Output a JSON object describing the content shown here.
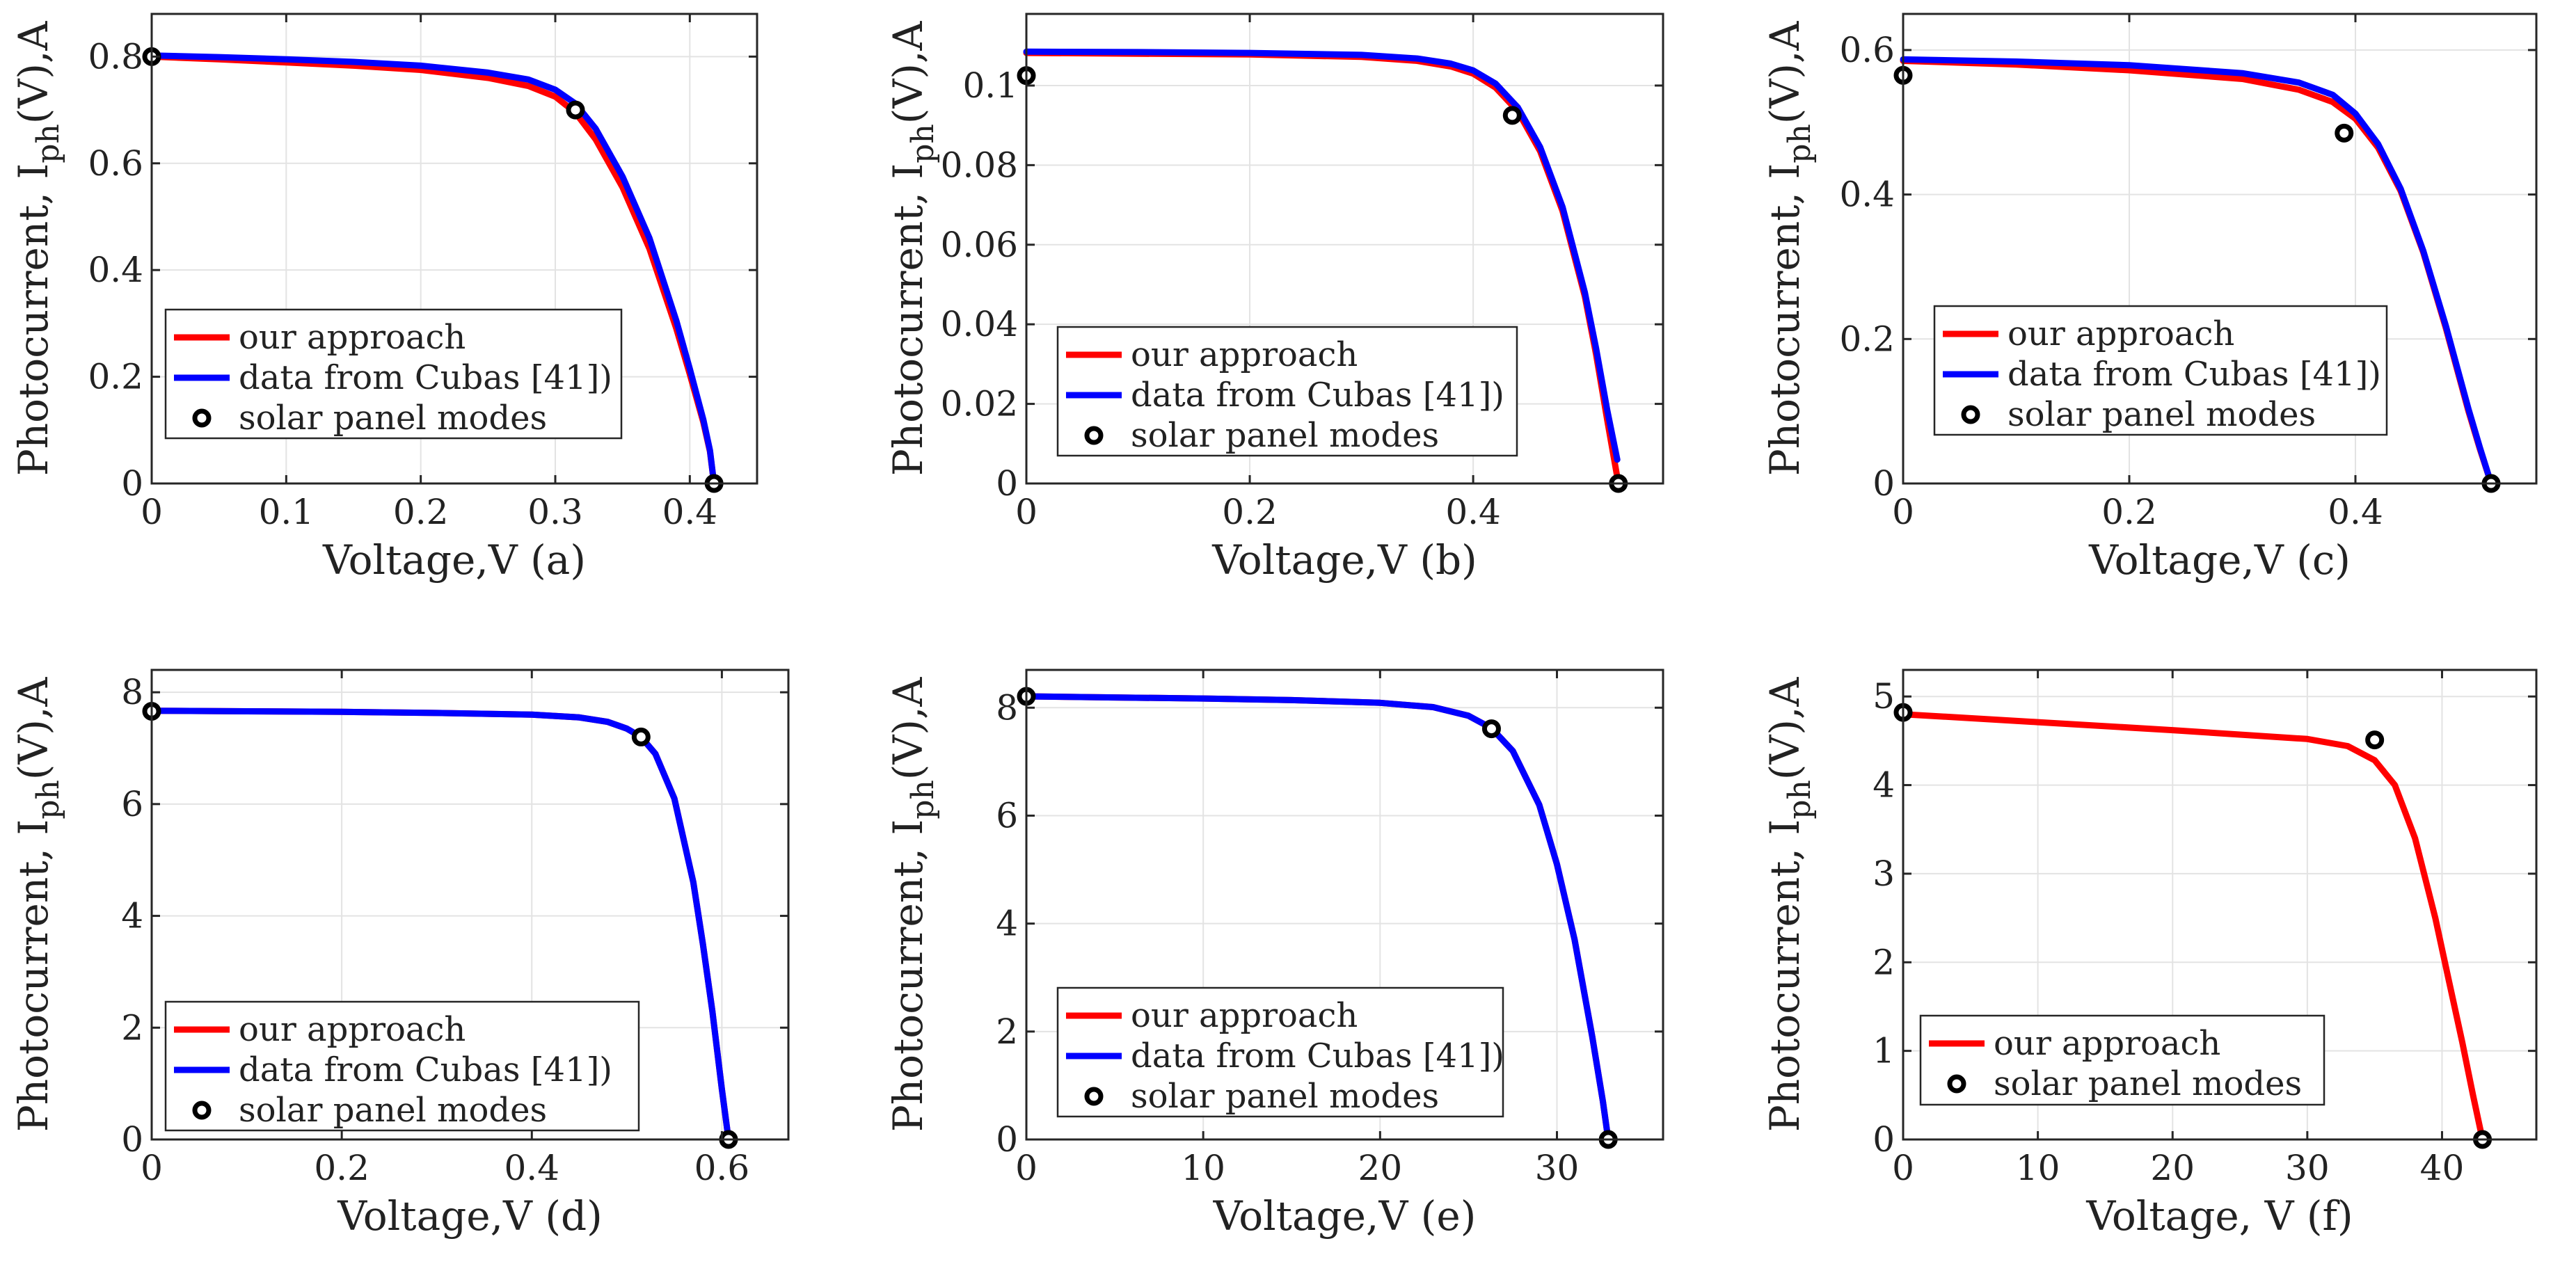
{
  "figure": {
    "colors": {
      "approach": "#ff0000",
      "cubas": "#0000ff",
      "modes": "#000000",
      "grid": "#e3e3e3",
      "axis": "#262626"
    }
  },
  "chart_data": [
    {
      "type": "line",
      "panel": "a",
      "title": "",
      "xlabel": "Voltage,V (a)",
      "ylabel": "Photocurrent, I_ph(V),A",
      "ylabel_parts": {
        "main": "Photocurrent, I",
        "sub": "ph",
        "tail": "(V),A"
      },
      "xlim": [
        0,
        0.45
      ],
      "ylim": [
        0,
        0.88
      ],
      "xticks": [
        0,
        0.1,
        0.2,
        0.3,
        0.4
      ],
      "xtick_labels": [
        "0",
        "0.1",
        "0.2",
        "0.3",
        "0.4"
      ],
      "yticks": [
        0,
        0.2,
        0.4,
        0.6,
        0.8
      ],
      "ytick_labels": [
        "0",
        "0.2",
        "0.4",
        "0.6",
        "0.8"
      ],
      "grid": true,
      "legend": [
        "our approach",
        "data from Cubas [41])",
        "solar panel modes"
      ],
      "legend_placement": "bottom-left",
      "series": [
        {
          "name": "our approach",
          "color": "#ff0000",
          "x": [
            0,
            0.05,
            0.1,
            0.15,
            0.2,
            0.25,
            0.28,
            0.3,
            0.315,
            0.33,
            0.35,
            0.37,
            0.39,
            0.4,
            0.41,
            0.415,
            0.418
          ],
          "y": [
            0.8,
            0.795,
            0.789,
            0.783,
            0.775,
            0.76,
            0.745,
            0.725,
            0.695,
            0.645,
            0.555,
            0.44,
            0.29,
            0.205,
            0.115,
            0.06,
            0.0
          ]
        },
        {
          "name": "data from Cubas [41])",
          "color": "#0000ff",
          "x": [
            0,
            0.05,
            0.1,
            0.15,
            0.2,
            0.25,
            0.28,
            0.3,
            0.315,
            0.33,
            0.35,
            0.37,
            0.39,
            0.4,
            0.41,
            0.415,
            0.418
          ],
          "y": [
            0.802,
            0.799,
            0.795,
            0.79,
            0.783,
            0.77,
            0.757,
            0.738,
            0.712,
            0.665,
            0.575,
            0.46,
            0.305,
            0.215,
            0.12,
            0.062,
            0.0
          ]
        }
      ],
      "points": {
        "name": "solar panel modes",
        "x": [
          0,
          0.315,
          0.418
        ],
        "y": [
          0.8,
          0.7,
          0.0
        ]
      }
    },
    {
      "type": "line",
      "panel": "b",
      "title": "",
      "xlabel": "Voltage,V (b)",
      "ylabel": "Photocurrent, I_ph(V),A",
      "ylabel_parts": {
        "main": "Photocurrent, I",
        "sub": "ph",
        "tail": "(V),A"
      },
      "xlim": [
        0,
        0.57
      ],
      "ylim": [
        0,
        0.118
      ],
      "xticks": [
        0,
        0.2,
        0.4
      ],
      "xtick_labels": [
        "0",
        "0.2",
        "0.4"
      ],
      "yticks": [
        0,
        0.02,
        0.04,
        0.06,
        0.08,
        0.1
      ],
      "ytick_labels": [
        "0",
        "0.02",
        "0.04",
        "0.06",
        "0.08",
        "0.1"
      ],
      "grid": true,
      "legend": [
        "our approach",
        "data from Cubas [41])",
        "solar panel modes"
      ],
      "legend_placement": "bottom-center",
      "series": [
        {
          "name": "our approach",
          "color": "#ff0000",
          "x": [
            0,
            0.1,
            0.2,
            0.3,
            0.35,
            0.38,
            0.4,
            0.42,
            0.44,
            0.46,
            0.48,
            0.5,
            0.51,
            0.52,
            0.53
          ],
          "y": [
            0.1082,
            0.108,
            0.1078,
            0.1072,
            0.1062,
            0.1048,
            0.103,
            0.0995,
            0.0935,
            0.0835,
            0.0685,
            0.047,
            0.0325,
            0.016,
            0.0
          ]
        },
        {
          "name": "data from Cubas [41])",
          "color": "#0000ff",
          "x": [
            0,
            0.1,
            0.2,
            0.3,
            0.35,
            0.38,
            0.4,
            0.42,
            0.44,
            0.46,
            0.48,
            0.5,
            0.51,
            0.52,
            0.529
          ],
          "y": [
            0.1085,
            0.1084,
            0.1082,
            0.1077,
            0.1068,
            0.1055,
            0.1038,
            0.1005,
            0.0945,
            0.0845,
            0.0695,
            0.048,
            0.034,
            0.0185,
            0.006
          ]
        }
      ],
      "points": {
        "name": "solar panel modes",
        "x": [
          0,
          0.435,
          0.53
        ],
        "y": [
          0.1025,
          0.0925,
          0.0
        ]
      }
    },
    {
      "type": "line",
      "panel": "c",
      "title": "",
      "xlabel": "Voltage,V (c)",
      "ylabel": "Photocurrent, I_ph(V),A",
      "ylabel_parts": {
        "main": "Photocurrent, I",
        "sub": "ph",
        "tail": "(V),A"
      },
      "xlim": [
        0,
        0.56
      ],
      "ylim": [
        0,
        0.65
      ],
      "xticks": [
        0,
        0.2,
        0.4
      ],
      "xtick_labels": [
        "0",
        "0.2",
        "0.4"
      ],
      "yticks": [
        0,
        0.2,
        0.4,
        0.6
      ],
      "ytick_labels": [
        "0",
        "0.2",
        "0.4",
        "0.6"
      ],
      "grid": true,
      "legend": [
        "our approach",
        "data from Cubas [41])",
        "solar panel modes"
      ],
      "legend_placement": "bottom-left",
      "series": [
        {
          "name": "our approach",
          "color": "#ff0000",
          "x": [
            0,
            0.1,
            0.2,
            0.3,
            0.35,
            0.38,
            0.4,
            0.42,
            0.44,
            0.46,
            0.48,
            0.5,
            0.51,
            0.52
          ],
          "y": [
            0.585,
            0.58,
            0.572,
            0.56,
            0.545,
            0.528,
            0.505,
            0.465,
            0.405,
            0.32,
            0.215,
            0.1,
            0.048,
            0.0
          ]
        },
        {
          "name": "data from Cubas [41])",
          "color": "#0000ff",
          "x": [
            0,
            0.1,
            0.2,
            0.3,
            0.35,
            0.38,
            0.4,
            0.42,
            0.44,
            0.46,
            0.48,
            0.5,
            0.51,
            0.52
          ],
          "y": [
            0.587,
            0.584,
            0.579,
            0.568,
            0.555,
            0.538,
            0.512,
            0.47,
            0.408,
            0.322,
            0.218,
            0.103,
            0.05,
            0.0
          ]
        }
      ],
      "points": {
        "name": "solar panel modes",
        "x": [
          0,
          0.39,
          0.52
        ],
        "y": [
          0.565,
          0.485,
          0.0
        ]
      }
    },
    {
      "type": "line",
      "panel": "d",
      "title": "",
      "xlabel": "Voltage,V (d)",
      "ylabel": "Photocurrent, I_ph(V),A",
      "ylabel_parts": {
        "main": "Photocurrent, I",
        "sub": "ph",
        "tail": "(V),A"
      },
      "xlim": [
        0,
        0.67
      ],
      "ylim": [
        0,
        8.4
      ],
      "xticks": [
        0,
        0.2,
        0.4,
        0.6
      ],
      "xtick_labels": [
        "0",
        "0.2",
        "0.4",
        "0.6"
      ],
      "yticks": [
        0,
        2,
        4,
        6,
        8
      ],
      "ytick_labels": [
        "0",
        "2",
        "4",
        "6",
        "8"
      ],
      "grid": true,
      "legend": [
        "our approach",
        "data from Cubas [41])",
        "solar panel modes"
      ],
      "legend_placement": "bottom-left",
      "series": [
        {
          "name": "our approach",
          "color": "#ff0000",
          "x": [
            0,
            0.1,
            0.2,
            0.3,
            0.4,
            0.45,
            0.48,
            0.5,
            0.515,
            0.53,
            0.55,
            0.57,
            0.58,
            0.59,
            0.6,
            0.607
          ],
          "y": [
            7.67,
            7.66,
            7.65,
            7.63,
            7.6,
            7.55,
            7.47,
            7.35,
            7.2,
            6.9,
            6.1,
            4.6,
            3.5,
            2.3,
            0.9,
            0.0
          ]
        },
        {
          "name": "data from Cubas [41])",
          "color": "#0000ff",
          "x": [
            0,
            0.1,
            0.2,
            0.3,
            0.4,
            0.45,
            0.48,
            0.5,
            0.515,
            0.53,
            0.55,
            0.57,
            0.58,
            0.59,
            0.6,
            0.607
          ],
          "y": [
            7.67,
            7.66,
            7.65,
            7.63,
            7.6,
            7.55,
            7.47,
            7.35,
            7.2,
            6.9,
            6.1,
            4.6,
            3.5,
            2.3,
            0.9,
            0.0
          ]
        }
      ],
      "points": {
        "name": "solar panel modes",
        "x": [
          0,
          0.515,
          0.607
        ],
        "y": [
          7.66,
          7.2,
          0.0
        ]
      }
    },
    {
      "type": "line",
      "panel": "e",
      "title": "",
      "xlabel": "Voltage,V (e)",
      "ylabel": "Photocurrent, I_ph(V),A",
      "ylabel_parts": {
        "main": "Photocurrent, I",
        "sub": "ph",
        "tail": "(V),A"
      },
      "xlim": [
        0,
        36
      ],
      "ylim": [
        0,
        8.7
      ],
      "xticks": [
        0,
        10,
        20,
        30
      ],
      "xtick_labels": [
        "0",
        "10",
        "20",
        "30"
      ],
      "yticks": [
        0,
        2,
        4,
        6,
        8
      ],
      "ytick_labels": [
        "0",
        "2",
        "4",
        "6",
        "8"
      ],
      "grid": true,
      "legend": [
        "our approach",
        "data from Cubas [41])",
        "solar panel modes"
      ],
      "legend_placement": "bottom-center",
      "series": [
        {
          "name": "our approach",
          "color": "#ff0000",
          "x": [
            0,
            5,
            10,
            15,
            20,
            23,
            25,
            26.3,
            27.5,
            29,
            30,
            31,
            32,
            32.6,
            32.9
          ],
          "y": [
            8.21,
            8.19,
            8.17,
            8.14,
            8.09,
            8.01,
            7.85,
            7.62,
            7.2,
            6.2,
            5.1,
            3.7,
            1.9,
            0.7,
            0.0
          ]
        },
        {
          "name": "data from Cubas [41])",
          "color": "#0000ff",
          "x": [
            0,
            5,
            10,
            15,
            20,
            23,
            25,
            26.3,
            27.5,
            29,
            30,
            31,
            32,
            32.6,
            32.9
          ],
          "y": [
            8.21,
            8.19,
            8.17,
            8.14,
            8.09,
            8.01,
            7.85,
            7.62,
            7.2,
            6.2,
            5.1,
            3.7,
            1.9,
            0.7,
            0.0
          ]
        }
      ],
      "points": {
        "name": "solar panel modes",
        "x": [
          0,
          26.3,
          32.9
        ],
        "y": [
          8.21,
          7.61,
          0.0
        ]
      }
    },
    {
      "type": "line",
      "panel": "f",
      "title": "",
      "xlabel": "Voltage, V (f)",
      "ylabel": "Photocurrent, I_ph(V),A",
      "ylabel_parts": {
        "main": "Photocurrent, I",
        "sub": "ph",
        "tail": "(V),A"
      },
      "xlim": [
        0,
        47
      ],
      "ylim": [
        0,
        5.3
      ],
      "xticks": [
        0,
        10,
        20,
        30,
        40
      ],
      "xtick_labels": [
        "0",
        "10",
        "20",
        "30",
        "40"
      ],
      "yticks": [
        0,
        1,
        2,
        3,
        4,
        5
      ],
      "ytick_labels": [
        "0",
        "1",
        "2",
        "3",
        "4",
        "5"
      ],
      "grid": true,
      "legend": [
        "our approach",
        "solar panel modes"
      ],
      "legend_placement": "bottom-left",
      "series": [
        {
          "name": "our approach",
          "color": "#ff0000",
          "x": [
            0,
            10,
            20,
            25,
            30,
            33,
            35,
            36.5,
            38,
            39.5,
            40.5,
            41.5,
            42.3,
            43.0
          ],
          "y": [
            4.8,
            4.71,
            4.62,
            4.57,
            4.52,
            4.44,
            4.28,
            4.0,
            3.4,
            2.5,
            1.8,
            1.1,
            0.5,
            0.0
          ]
        }
      ],
      "points": {
        "name": "solar panel modes",
        "x": [
          0,
          35,
          43.0
        ],
        "y": [
          4.82,
          4.51,
          0.0
        ]
      }
    }
  ]
}
